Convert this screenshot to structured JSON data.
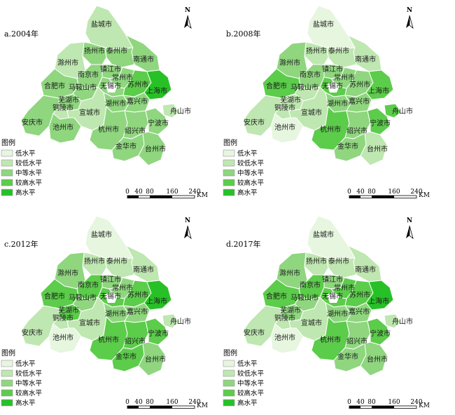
{
  "palette": {
    "level1": "#e6f6df",
    "level2": "#bfe7b1",
    "level3": "#8fd67f",
    "level4": "#5ccc4b",
    "level5": "#27c127",
    "border": "#ffffff",
    "lake": "#ffffff"
  },
  "legend": {
    "title": "图例",
    "items": [
      {
        "label": "低水平",
        "level": 1
      },
      {
        "label": "较低水平",
        "level": 2
      },
      {
        "label": "中等水平",
        "level": 3
      },
      {
        "label": "较高水平",
        "level": 4
      },
      {
        "label": "高水平",
        "level": 5
      }
    ]
  },
  "scale": {
    "ticks": [
      "0",
      "40",
      "80",
      "160",
      "240"
    ],
    "unit": "KM"
  },
  "north_label": "N",
  "cities": [
    "盐城市",
    "扬州市",
    "泰州市",
    "南通市",
    "滁州市",
    "镇江市",
    "南京市",
    "常州市",
    "合肥市",
    "马鞍山市",
    "无锡市",
    "苏州市",
    "上海市",
    "芜湖市",
    "铜陵市",
    "湖州市",
    "嘉兴市",
    "舟山市",
    "安庆市",
    "池州市",
    "宣城市",
    "杭州市",
    "绍兴市",
    "宁波市",
    "金华市",
    "台州市"
  ],
  "panels": [
    {
      "title": "a.2004年",
      "levels": {
        "盐城市": 2,
        "扬州市": 3,
        "泰州市": 3,
        "南通市": 3,
        "滁州市": 2,
        "镇江市": 3,
        "南京市": 3,
        "常州市": 3,
        "合肥市": 3,
        "马鞍山市": 3,
        "无锡市": 3,
        "苏州市": 4,
        "上海市": 5,
        "芜湖市": 3,
        "铜陵市": 2,
        "湖州市": 3,
        "嘉兴市": 3,
        "舟山市": 2,
        "安庆市": 3,
        "池州市": 3,
        "宣城市": 2,
        "杭州市": 3,
        "绍兴市": 3,
        "宁波市": 3,
        "金华市": 3,
        "台州市": 3
      }
    },
    {
      "title": "b.2008年",
      "levels": {
        "盐城市": 1,
        "扬州市": 2,
        "泰州市": 2,
        "南通市": 2,
        "滁州市": 3,
        "镇江市": 3,
        "南京市": 3,
        "常州市": 3,
        "合肥市": 4,
        "马鞍山市": 2,
        "无锡市": 4,
        "苏州市": 3,
        "上海市": 4,
        "芜湖市": 2,
        "铜陵市": 2,
        "湖州市": 3,
        "嘉兴市": 3,
        "舟山市": 4,
        "安庆市": 2,
        "池州市": 1,
        "宣城市": 2,
        "杭州市": 4,
        "绍兴市": 3,
        "宁波市": 4,
        "金华市": 3,
        "台州市": 2
      }
    },
    {
      "title": "c.2012年",
      "levels": {
        "盐城市": 1,
        "扬州市": 2,
        "泰州市": 2,
        "南通市": 2,
        "滁州市": 3,
        "镇江市": 3,
        "南京市": 4,
        "常州市": 3,
        "合肥市": 4,
        "马鞍山市": 3,
        "无锡市": 4,
        "苏州市": 4,
        "上海市": 5,
        "芜湖市": 4,
        "铜陵市": 2,
        "湖州市": 3,
        "嘉兴市": 3,
        "舟山市": 2,
        "安庆市": 2,
        "池州市": 1,
        "宣城市": 2,
        "杭州市": 4,
        "绍兴市": 4,
        "宁波市": 4,
        "金华市": 4,
        "台州市": 3
      }
    },
    {
      "title": "d.2017年",
      "levels": {
        "盐城市": 1,
        "扬州市": 2,
        "泰州市": 2,
        "南通市": 2,
        "滁州市": 3,
        "镇江市": 3,
        "南京市": 4,
        "常州市": 4,
        "合肥市": 4,
        "马鞍山市": 3,
        "无锡市": 4,
        "苏州市": 4,
        "上海市": 5,
        "芜湖市": 3,
        "铜陵市": 2,
        "湖州市": 3,
        "嘉兴市": 3,
        "舟山市": 2,
        "安庆市": 2,
        "池州市": 1,
        "宣城市": 2,
        "杭州市": 4,
        "绍兴市": 3,
        "宁波市": 4,
        "金华市": 3,
        "台州市": 3
      }
    }
  ]
}
